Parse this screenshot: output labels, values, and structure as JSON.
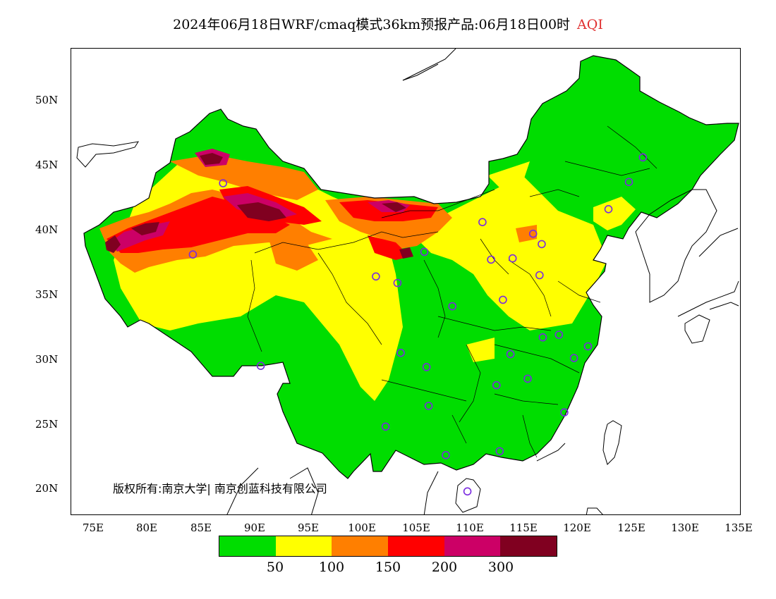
{
  "title": {
    "text": "2024年06月18日WRF/cmaq模式36km预报产品:06月18日00时",
    "parameter": "AQI"
  },
  "colors": {
    "parameter_title": "#e03030",
    "station_marker": "#7a2be0",
    "sea": "#ffffff",
    "border": "#000000"
  },
  "axes": {
    "x_ticks": [
      "75E",
      "80E",
      "85E",
      "90E",
      "95E",
      "100E",
      "105E",
      "110E",
      "115E",
      "120E",
      "125E",
      "130E",
      "135E"
    ],
    "y_ticks": [
      "50N",
      "45N",
      "40N",
      "35N",
      "30N",
      "25N",
      "20N"
    ]
  },
  "copyright": "版权所有:南京大学| 南京创蓝科技有限公司",
  "legend": {
    "colors": [
      "#00dd00",
      "#ffff00",
      "#ff7f00",
      "#ff0000",
      "#cc0066",
      "#800020"
    ],
    "labels": [
      "50",
      "100",
      "150",
      "200",
      "300"
    ]
  },
  "stations": [
    {
      "lon": 87.6,
      "lat": 43.8
    },
    {
      "lon": 101.8,
      "lat": 36.6
    },
    {
      "lon": 103.8,
      "lat": 36.1
    },
    {
      "lon": 106.3,
      "lat": 38.5
    },
    {
      "lon": 111.7,
      "lat": 40.8
    },
    {
      "lon": 116.4,
      "lat": 39.9
    },
    {
      "lon": 117.2,
      "lat": 39.1
    },
    {
      "lon": 114.5,
      "lat": 38.0
    },
    {
      "lon": 112.5,
      "lat": 37.9
    },
    {
      "lon": 117.0,
      "lat": 36.7
    },
    {
      "lon": 113.6,
      "lat": 34.8
    },
    {
      "lon": 108.9,
      "lat": 34.3
    },
    {
      "lon": 117.3,
      "lat": 31.9
    },
    {
      "lon": 118.8,
      "lat": 32.1
    },
    {
      "lon": 121.5,
      "lat": 31.2
    },
    {
      "lon": 120.2,
      "lat": 30.3
    },
    {
      "lon": 114.3,
      "lat": 30.6
    },
    {
      "lon": 115.9,
      "lat": 28.7
    },
    {
      "lon": 113.0,
      "lat": 28.2
    },
    {
      "lon": 106.5,
      "lat": 29.6
    },
    {
      "lon": 104.1,
      "lat": 30.7
    },
    {
      "lon": 106.7,
      "lat": 26.6
    },
    {
      "lon": 102.7,
      "lat": 25.0
    },
    {
      "lon": 108.3,
      "lat": 22.8
    },
    {
      "lon": 113.3,
      "lat": 23.1
    },
    {
      "lon": 119.3,
      "lat": 26.1
    },
    {
      "lon": 110.3,
      "lat": 20.0
    },
    {
      "lon": 123.4,
      "lat": 41.8
    },
    {
      "lon": 125.3,
      "lat": 43.9
    },
    {
      "lon": 126.6,
      "lat": 45.8
    },
    {
      "lon": 91.1,
      "lat": 29.7
    },
    {
      "lon": 84.8,
      "lat": 38.3
    }
  ]
}
